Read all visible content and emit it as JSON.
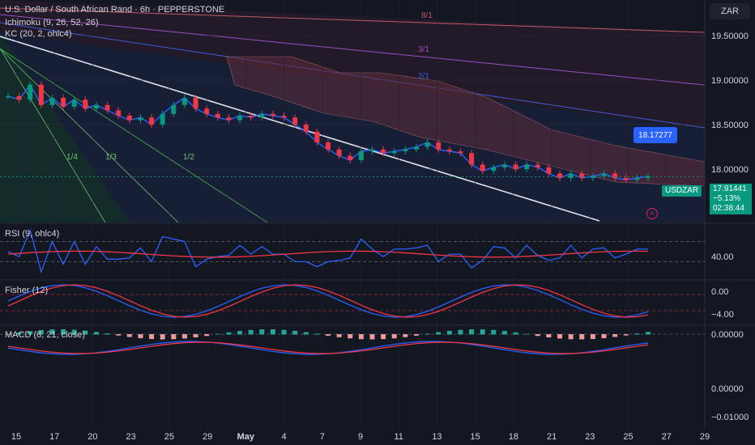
{
  "header": {
    "title": "U.S. Dollar / South African Rand · 6h · PEPPERSTONE",
    "indicator_1": "Ichimoku (9, 26, 52, 26)",
    "indicator_2": "KC (20, 2, ohlc4)"
  },
  "currency_button": "ZAR",
  "last_price": {
    "symbol": "USDZAR",
    "price": "17.91441",
    "change": "−5.13%",
    "countdown": "02:38:44"
  },
  "callout_price": "18.17277",
  "fan_labels": [
    "1/4",
    "1/3",
    "1/2"
  ],
  "gann_labels": [
    "8/1",
    "3/1",
    "2/1"
  ],
  "panes": {
    "rsi": {
      "label": "RSI (9, ohlc4)",
      "tick": "40.00"
    },
    "fisher": {
      "label": "Fisher (12)",
      "ticks": [
        "0.00",
        "−4.00"
      ]
    },
    "macd": {
      "label": "MACD (8, 21, close)",
      "ticks": [
        "0.00000",
        "0.00000",
        "−0.01000"
      ]
    }
  },
  "colors": {
    "background": "#131722",
    "up": "#089981",
    "down": "#f23645",
    "rsi": "#2962ff",
    "signal": "#f23645"
  },
  "chart_data": {
    "type": "line",
    "title": "U.S. Dollar / South African Rand · 6h · PEPPERSTONE",
    "xlabel": "",
    "ylabel": "",
    "x_ticks": [
      "15",
      "17",
      "20",
      "23",
      "25",
      "29",
      "May",
      "4",
      "7",
      "9",
      "11",
      "13",
      "15",
      "18",
      "21",
      "23",
      "25",
      "27",
      "29"
    ],
    "y_ticks": [
      19.5,
      19.0,
      18.5,
      18.0
    ],
    "ylim": [
      17.4,
      19.9
    ],
    "grid": true,
    "series": [
      {
        "name": "USDZAR",
        "values": [
          18.82,
          18.78,
          18.95,
          18.72,
          18.8,
          18.7,
          18.78,
          18.68,
          18.72,
          18.66,
          18.6,
          18.55,
          18.58,
          18.5,
          18.62,
          18.72,
          18.8,
          18.68,
          18.62,
          18.58,
          18.55,
          18.6,
          18.58,
          18.62,
          18.6,
          18.58,
          18.5,
          18.42,
          18.3,
          18.22,
          18.15,
          18.1,
          18.2,
          18.22,
          18.18,
          18.2,
          18.22,
          18.25,
          18.3,
          18.22,
          18.2,
          18.18,
          18.05,
          17.98,
          18.02,
          18.05,
          18.0,
          18.05,
          18.02,
          17.95,
          17.9,
          17.95,
          17.9,
          17.92,
          17.95,
          17.9,
          17.88,
          17.9,
          17.92
        ]
      }
    ]
  }
}
